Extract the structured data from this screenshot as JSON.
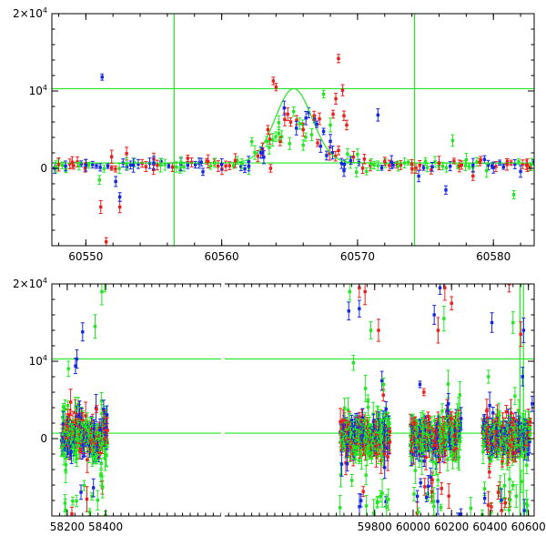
{
  "colors": {
    "red": "#e8201c",
    "blue": "#1528e0",
    "green": "#22e622",
    "axis": "#000000",
    "bg": "#ffffff"
  },
  "chart_data": [
    {
      "type": "scatter",
      "title": "",
      "xlabel": "",
      "ylabel": "",
      "xlim": [
        60547.5,
        60583
      ],
      "ylim": [
        -10000,
        20000
      ],
      "x_ticks": [
        60550,
        60560,
        60570,
        60580
      ],
      "x_tick_labels": [
        "60550",
        "60560",
        "60570",
        "60580"
      ],
      "y_ticks": [
        0,
        10000,
        20000
      ],
      "y_tick_labels": [
        {
          "base": "0",
          "exp": ""
        },
        {
          "base": "10",
          "exp": "4"
        },
        {
          "base": "2×10",
          "exp": "4"
        }
      ],
      "error_bars": true,
      "reference_lines": {
        "horizontal": [
          700,
          10300
        ],
        "vertical": [
          60556.5,
          60574.2
        ]
      },
      "model_curve": {
        "shape": "gaussian",
        "baseline": 700,
        "peak": 10300,
        "center": 60565.3,
        "sigma": 1.35
      },
      "series": [
        {
          "color_key": "red",
          "points": [
            [
              60548,
              500
            ],
            [
              60549,
              800
            ],
            [
              60550,
              600
            ],
            [
              60551.1,
              -5000
            ],
            [
              60551.5,
              -9500
            ],
            [
              60551.9,
              1500
            ],
            [
              60552.5,
              -5000
            ],
            [
              60553,
              1900
            ],
            [
              60555,
              1200
            ],
            [
              60557.5,
              1300
            ],
            [
              60559,
              900
            ],
            [
              60561,
              1000
            ],
            [
              60563,
              2500
            ],
            [
              60563.4,
              5000
            ],
            [
              60563.8,
              11300
            ],
            [
              60564,
              10500
            ],
            [
              60563.6,
              0
            ],
            [
              60564.3,
              3500
            ],
            [
              60566,
              5000
            ],
            [
              60566.8,
              6800
            ],
            [
              60567.2,
              6400
            ],
            [
              60568.2,
              7000
            ],
            [
              60568.6,
              14200
            ],
            [
              60568.9,
              10100
            ],
            [
              60568.4,
              9000
            ],
            [
              60569,
              6800
            ],
            [
              60569.2,
              5600
            ],
            [
              60570.5,
              1200
            ],
            [
              60572,
              900
            ],
            [
              60574,
              600
            ],
            [
              60576,
              700
            ],
            [
              60577.5,
              300
            ],
            [
              60578.5,
              -1000
            ],
            [
              60579,
              800
            ],
            [
              60581,
              500
            ],
            [
              60582.5,
              400
            ]
          ]
        },
        {
          "color_key": "blue",
          "points": [
            [
              60548.5,
              300
            ],
            [
              60550,
              400
            ],
            [
              60551.2,
              11800
            ],
            [
              60552.5,
              -3700
            ],
            [
              60552.2,
              -1700
            ],
            [
              60553.5,
              400
            ],
            [
              60555,
              700
            ],
            [
              60557,
              500
            ],
            [
              60558.5,
              800
            ],
            [
              60560,
              500
            ],
            [
              60562,
              300
            ],
            [
              60563,
              2000
            ],
            [
              60564.6,
              7800
            ],
            [
              60565.5,
              5200
            ],
            [
              60566.2,
              6500
            ],
            [
              60567,
              5700
            ],
            [
              60568,
              3500
            ],
            [
              60569.5,
              1000
            ],
            [
              60569,
              -300
            ],
            [
              60571.5,
              6900
            ],
            [
              60572.5,
              800
            ],
            [
              60574.5,
              -1000
            ],
            [
              60575.5,
              200
            ],
            [
              60576.5,
              -2800
            ],
            [
              60578.5,
              400
            ],
            [
              60580,
              100
            ],
            [
              60582,
              -400
            ]
          ]
        },
        {
          "color_key": "green",
          "points": [
            [
              60547.8,
              200
            ],
            [
              60549.5,
              300
            ],
            [
              60551,
              -1500
            ],
            [
              60553,
              600
            ],
            [
              60555.5,
              400
            ],
            [
              60557,
              800
            ],
            [
              60559.5,
              700
            ],
            [
              60561.5,
              600
            ],
            [
              60563.5,
              2700
            ],
            [
              60564.2,
              4500
            ],
            [
              60565,
              3200
            ],
            [
              60566,
              3000
            ],
            [
              60567.5,
              9600
            ],
            [
              60568,
              5600
            ],
            [
              60570,
              1800
            ],
            [
              60571,
              600
            ],
            [
              60573,
              300
            ],
            [
              60575,
              900
            ],
            [
              60577,
              3600
            ],
            [
              60578,
              1100
            ],
            [
              60579.5,
              -300
            ],
            [
              60581.5,
              -3400
            ],
            [
              60582.8,
              500
            ]
          ]
        }
      ]
    },
    {
      "type": "scatter",
      "title": "",
      "xlabel": "",
      "ylabel": "",
      "xlim": [
        58120,
        60630
      ],
      "ylim": [
        -10000,
        20000
      ],
      "x_ticks": [
        58200,
        58400,
        59800,
        60000,
        60200,
        60400,
        60600
      ],
      "x_tick_labels": [
        "58200",
        "58400",
        "59800",
        "60000",
        "60200",
        "60400",
        "60600"
      ],
      "y_ticks": [
        0,
        10000,
        20000
      ],
      "y_tick_labels": [
        {
          "base": "0",
          "exp": ""
        },
        {
          "base": "10",
          "exp": "4"
        },
        {
          "base": "2×10",
          "exp": "4"
        }
      ],
      "error_bars": true,
      "reference_lines": {
        "horizontal": [
          700,
          10300
        ],
        "vertical": [
          60556.5,
          60574.2
        ]
      },
      "season_ranges": [
        [
          58170,
          58410
        ],
        [
          59620,
          59880
        ],
        [
          59985,
          60250
        ],
        [
          60360,
          60610
        ]
      ],
      "outliers": [
        {
          "color_key": "green",
          "points": [
            [
              58380,
              19000
            ],
            [
              58395,
              20500
            ],
            [
              58345,
              14500
            ],
            [
              59670,
              19000
            ],
            [
              59780,
              14000
            ],
            [
              60300,
              -9000
            ],
            [
              60520,
              15000
            ]
          ]
        },
        {
          "color_key": "blue",
          "points": [
            [
              58280,
              13800
            ],
            [
              58250,
              10300
            ],
            [
              59665,
              16500
            ],
            [
              59720,
              16800
            ],
            [
              60110,
              16000
            ],
            [
              60140,
              19500
            ],
            [
              60410,
              15000
            ],
            [
              60575,
              14000
            ],
            [
              60620,
              4500
            ]
          ]
        },
        {
          "color_key": "red",
          "points": [
            [
              59720,
              19500
            ],
            [
              59750,
              19000
            ],
            [
              59820,
              14000
            ],
            [
              60130,
              14000
            ],
            [
              60165,
              19500
            ],
            [
              60200,
              17500
            ],
            [
              60500,
              20000
            ],
            [
              60560,
              13500
            ]
          ]
        }
      ]
    }
  ]
}
